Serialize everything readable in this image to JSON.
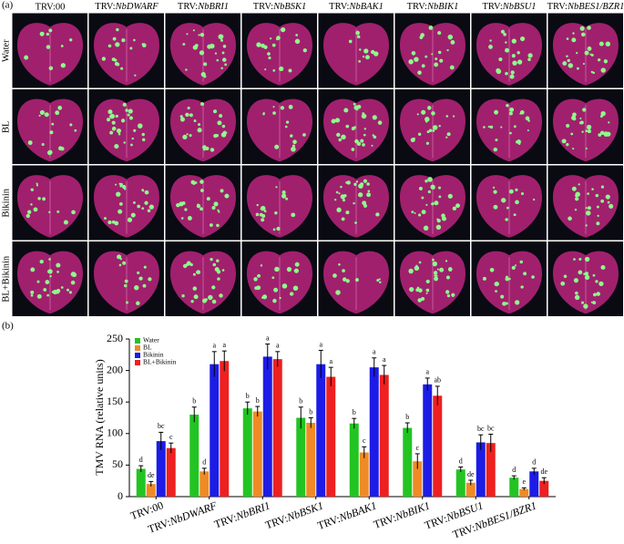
{
  "panel_a": {
    "label": "(a)",
    "columns": [
      "TRV:00",
      "TRV:NbDWARF",
      "TRV:NbBRI1",
      "TRV:NbBSK1",
      "TRV:NbBAK1",
      "TRV:NbBIK1",
      "TRV:NbBSU1",
      "TRV:NbBES1/BZR1"
    ],
    "rows": [
      "Water",
      "BL",
      "Bikinin",
      "BL+Bikinin"
    ]
  },
  "chart_data": {
    "type": "bar",
    "panel_label": "(b)",
    "ylabel": "TMV RNA (relative units)",
    "categories": [
      "TRV:00",
      "TRV:NbDWARF",
      "TRV:NbBRI1",
      "TRV:NbBSK1",
      "TRV:NbBAK1",
      "TRV:NbBIK1",
      "TRV:NbBSU1",
      "TRV:NbBES1/BZR1"
    ],
    "ylim": [
      0,
      250
    ],
    "yticks": [
      0,
      50,
      100,
      150,
      200,
      250
    ],
    "legend": "top-left",
    "series": [
      {
        "name": "Water",
        "color": "#22c422",
        "values": [
          44,
          130,
          140,
          125,
          116,
          109,
          43,
          30
        ],
        "errors": [
          5,
          12,
          10,
          17,
          8,
          8,
          4,
          3
        ],
        "letters": [
          "d",
          "b",
          "b",
          "b",
          "b",
          "b",
          "d",
          "d"
        ]
      },
      {
        "name": "BL",
        "color": "#f08a24",
        "values": [
          20,
          40,
          135,
          117,
          70,
          56,
          22,
          12
        ],
        "errors": [
          4,
          5,
          8,
          8,
          9,
          12,
          4,
          2
        ],
        "letters": [
          "de",
          "d",
          "b",
          "b",
          "c",
          "c",
          "de",
          "e"
        ]
      },
      {
        "name": "Bikinin",
        "color": "#1c1ce6",
        "values": [
          88,
          210,
          222,
          210,
          205,
          178,
          86,
          40
        ],
        "errors": [
          14,
          20,
          20,
          22,
          15,
          10,
          12,
          5
        ],
        "letters": [
          "bc",
          "a",
          "a",
          "a",
          "a",
          "a",
          "bc",
          "d"
        ]
      },
      {
        "name": "BL+Bikinin",
        "color": "#ee2020",
        "values": [
          77,
          215,
          218,
          190,
          193,
          160,
          85,
          25
        ],
        "errors": [
          8,
          16,
          12,
          15,
          15,
          15,
          14,
          5
        ],
        "letters": [
          "c",
          "a",
          "a",
          "a",
          "a",
          "ab",
          "bc",
          "de"
        ]
      }
    ]
  }
}
